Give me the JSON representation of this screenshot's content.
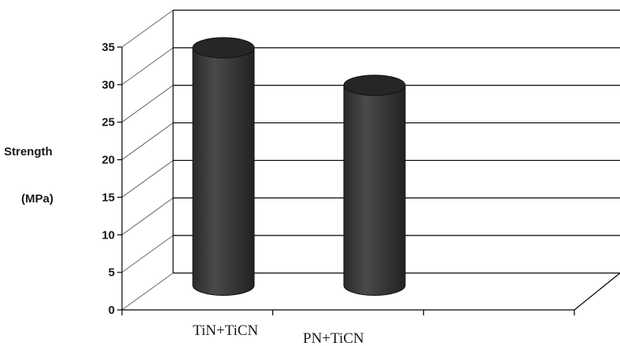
{
  "chart_data": {
    "type": "bar",
    "categories": [
      "TiN+TiCN",
      "PN+TiCN"
    ],
    "values": [
      33.5,
      28.5
    ],
    "ylabel_line1": "Strength",
    "ylabel_line2": "(MPa)",
    "ylim": [
      0,
      35
    ],
    "yticks": [
      "0",
      "5",
      "10",
      "15",
      "20",
      "25",
      "30",
      "35"
    ],
    "grid": true,
    "colors": {
      "bar": "#3a3a3a",
      "bar_top": "#262626",
      "grid": "#000000"
    }
  }
}
